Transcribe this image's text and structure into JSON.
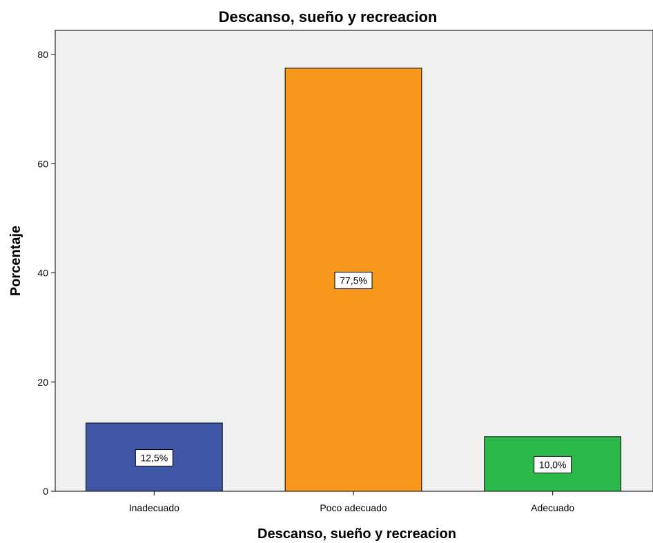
{
  "chart_data": {
    "type": "bar",
    "title": "Descanso, sueño y recreacion",
    "xlabel": "Descanso, sueño y recreacion",
    "ylabel": "Porcentaje",
    "categories": [
      "Inadecuado",
      "Poco adecuado",
      "Adecuado"
    ],
    "values": [
      12.5,
      77.5,
      10.0
    ],
    "data_labels": [
      "12,5%",
      "77,5%",
      "10,0%"
    ],
    "colors": [
      "#3f57a6",
      "#f7981d",
      "#2db84b"
    ],
    "ylim": [
      0,
      85
    ],
    "yticks": [
      0,
      20,
      40,
      60,
      80
    ],
    "ytick_labels": [
      "0",
      "20",
      "40",
      "60",
      "80"
    ],
    "plot_background": "#f0f0f0",
    "grid": false,
    "legend": "none"
  }
}
